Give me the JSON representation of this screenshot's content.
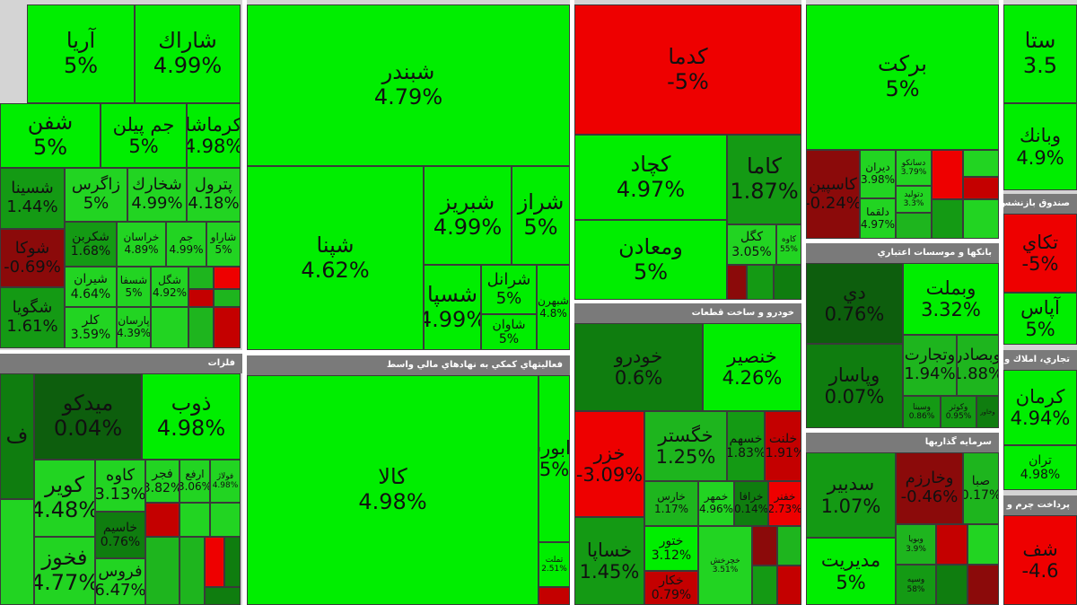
{
  "colors": {
    "strong_positive": "#00ee00",
    "positive": "#22d422",
    "weak_positive": "#149a14",
    "neutral": "#0d5e0d",
    "negative": "#ee0000",
    "header_bg": "#7a7a7a"
  },
  "sectors": {
    "metals": "فلزات",
    "financial": "فعاليتهاي كمكي به نهادهاي مالي واسط",
    "auto": "خودرو و ساخت قطعات",
    "banks": "بانكها و موسسات اعتباري",
    "invest": "سرمايه گذاريها",
    "fund": "صندوق بازنشس",
    "realestate": "تجاري، املاك و م",
    "payment": "پرداخت چرم و"
  },
  "tiles": {
    "aria": {
      "n": "آريا",
      "p": "5%"
    },
    "shirak": {
      "n": "شاراك",
      "p": "4.99%"
    },
    "shafan": {
      "n": "شفن",
      "p": "5%"
    },
    "jampilan": {
      "n": "جم پيلن",
      "p": "5%"
    },
    "kermasha": {
      "n": "كرماشا",
      "p": "4.98%"
    },
    "shesina": {
      "n": "شسينا",
      "p": "1.44%"
    },
    "zagros": {
      "n": "زاگرس",
      "p": "5%"
    },
    "shkhark": {
      "n": "شخارك",
      "p": "4.99%"
    },
    "petrol": {
      "n": "پترول",
      "p": "4.18%"
    },
    "shekarbon": {
      "n": "شكربن",
      "p": "1.68%"
    },
    "khorasan": {
      "n": "خراسان",
      "p": "4.89%"
    },
    "jam": {
      "n": "جم",
      "p": "4.99%"
    },
    "sharou": {
      "n": "شاراو",
      "p": "5%"
    },
    "shesfa": {
      "n": "شسفا",
      "p": "5%"
    },
    "shgol": {
      "n": "شگل",
      "p": "4.92%"
    },
    "shouka": {
      "n": "شوكا",
      "p": "-0.69%"
    },
    "shiran": {
      "n": "شيران",
      "p": "4.64%"
    },
    "shegoya": {
      "n": "شگويا",
      "p": "1.61%"
    },
    "kela": {
      "n": "كلر",
      "p": "3.59%"
    },
    "paras": {
      "n": "پارسان",
      "p": "4.39%"
    },
    "shbandar": {
      "n": "شبندر",
      "p": "4.79%"
    },
    "shpna": {
      "n": "شپنا",
      "p": "4.62%"
    },
    "shabriz": {
      "n": "شبريز",
      "p": "4.99%"
    },
    "shraz": {
      "n": "شراز",
      "p": "5%"
    },
    "shesapa": {
      "n": "شسپا",
      "p": "4.99%"
    },
    "sharan": {
      "n": "شرانل",
      "p": "5%"
    },
    "shavan": {
      "n": "شاوان",
      "p": "5%"
    },
    "shbahran": {
      "n": "شبهرن",
      "p": "4.8%"
    },
    "kadma": {
      "n": "كدما",
      "p": "-5%"
    },
    "kechad": {
      "n": "كچاد",
      "p": "4.97%"
    },
    "kama": {
      "n": "كاما",
      "p": "1.87%"
    },
    "maaden": {
      "n": "ومعادن",
      "p": "5%"
    },
    "kegol": {
      "n": "كگل",
      "p": "3.05%"
    },
    "kaveh": {
      "n": "كاوه",
      "p": "55%"
    },
    "barkat": {
      "n": "بركت",
      "p": "5%"
    },
    "kaspin": {
      "n": "كاسپين",
      "p": "-0.24%"
    },
    "dirian": {
      "n": "ديران",
      "p": "3.98%"
    },
    "dasaka": {
      "n": "دسانكو",
      "p": "3.79%"
    },
    "daloy": {
      "n": "دلقما",
      "p": "4.97%"
    },
    "dtolid": {
      "n": "دتوليد",
      "p": "3.3%"
    },
    "meydko": {
      "n": "ميدكو",
      "p": "0.04%"
    },
    "zob": {
      "n": "ذوب",
      "p": "4.98%"
    },
    "kavir": {
      "n": "كوير",
      "p": "4.48%"
    },
    "kaveh2": {
      "n": "كاوه",
      "p": "3.13%"
    },
    "fajr": {
      "n": "فجر",
      "p": "3.82%"
    },
    "arfa": {
      "n": "ارفع",
      "p": "3.06%"
    },
    "fouladh": {
      "n": "فولاژ",
      "p": "4.98%"
    },
    "fakhouz": {
      "n": "فخوز",
      "p": "4.77%"
    },
    "faros": {
      "n": "فروس",
      "p": "6.47%"
    },
    "khasim": {
      "n": "خاسيم",
      "p": "0.76%"
    },
    "kala": {
      "n": "كالا",
      "p": "4.98%"
    },
    "farabourse": {
      "n": "فرابورس",
      "p": "5%"
    },
    "tamlat": {
      "n": "تملت",
      "p": "2.51%"
    },
    "khodro": {
      "n": "خودرو",
      "p": "0.6%"
    },
    "khanser": {
      "n": "خنصير",
      "p": "4.26%"
    },
    "khazar": {
      "n": "خزر",
      "p": "-3.09%"
    },
    "khgostar": {
      "n": "خگستر",
      "p": "1.25%"
    },
    "khsahm": {
      "n": "خسهم",
      "p": "1.83%"
    },
    "khalir": {
      "n": "خلنت",
      "p": "-1.91%"
    },
    "khsapa": {
      "n": "خساپا",
      "p": "1.45%"
    },
    "kharas": {
      "n": "خارس",
      "p": "1.17%"
    },
    "khomhr": {
      "n": "خمهر",
      "p": "4.96%"
    },
    "khatour": {
      "n": "ختور",
      "p": "3.12%"
    },
    "khakar": {
      "n": "خكار",
      "p": "0.79%"
    },
    "khraf": {
      "n": "خرافا",
      "p": "0.14%"
    },
    "khgfr": {
      "n": "خفنر",
      "p": "2.73%"
    },
    "khchr": {
      "n": "خچرخش",
      "p": "3.51%"
    },
    "di": {
      "n": "دي",
      "p": "0.76%"
    },
    "vabmelat": {
      "n": "وبملت",
      "p": "3.32%"
    },
    "vatejarat": {
      "n": "وتجارت",
      "p": "1.94%"
    },
    "vabasader": {
      "n": "وبصادر",
      "p": "1.88%"
    },
    "vapasar": {
      "n": "وپاسار",
      "p": "0.07%"
    },
    "vsina": {
      "n": "وسينا",
      "p": "0.86%"
    },
    "vkoti": {
      "n": "وكوثر",
      "p": "0.95%"
    },
    "vakhavar": {
      "n": "وخاور",
      "p": "0.55%"
    },
    "sadbir": {
      "n": "سدبير",
      "p": "1.07%"
    },
    "kharazm": {
      "n": "وخارزم",
      "p": "-0.46%"
    },
    "saba": {
      "n": "صبا",
      "p": "0.17%"
    },
    "modirit": {
      "n": "مديريت",
      "p": "5%"
    },
    "vbouya": {
      "n": "وبويا",
      "p": "3.9%"
    },
    "vsepahan": {
      "n": "وسپه",
      "p": "58%"
    },
    "stak": {
      "n": "ستا",
      "p": "3.5"
    },
    "vabank": {
      "n": "وبانك",
      "p": "4.9%"
    },
    "tkahy": {
      "n": "تكاي",
      "p": "-5%"
    },
    "apas": {
      "n": "آپاس",
      "p": "5%"
    },
    "kerman": {
      "n": "كرمان",
      "p": "4.94%"
    },
    "tran": {
      "n": "تران",
      "p": "4.98%"
    },
    "shf": {
      "n": "شف",
      "p": "-4.6"
    },
    "f_small": {
      "n": "ف",
      "p": ""
    }
  }
}
